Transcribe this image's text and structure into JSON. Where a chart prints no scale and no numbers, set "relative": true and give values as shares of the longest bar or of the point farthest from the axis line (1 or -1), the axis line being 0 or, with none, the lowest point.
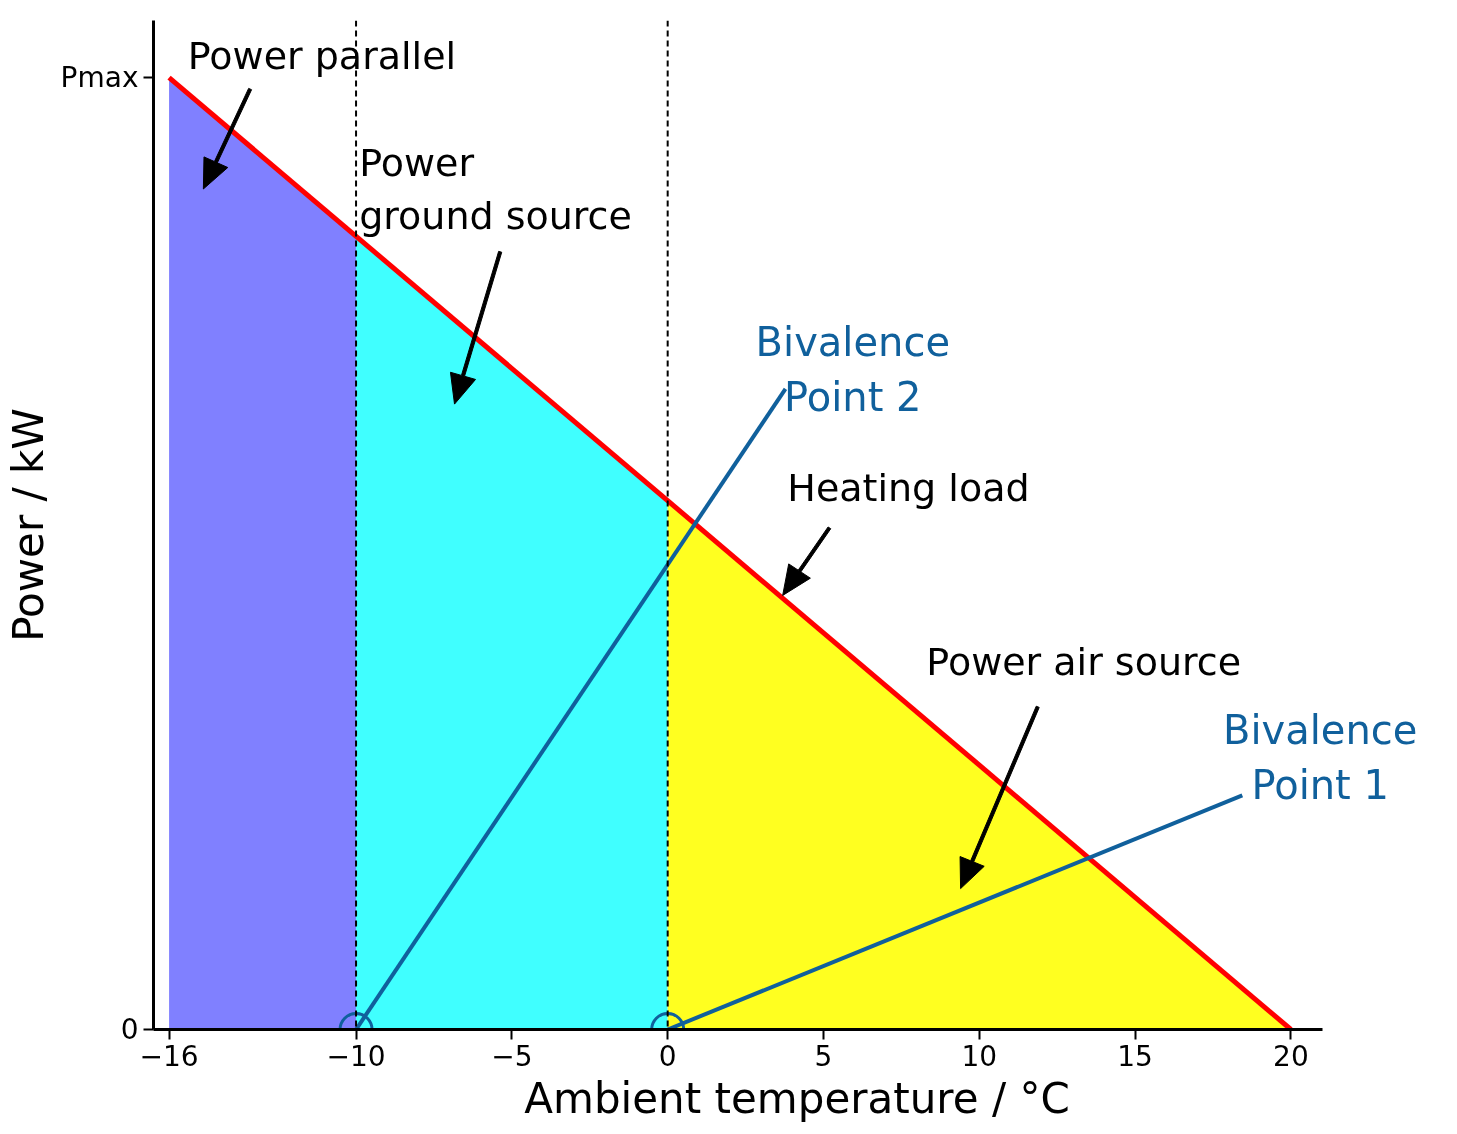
{
  "chart_data": {
    "type": "area",
    "xlabel": "Ambient temperature / °C",
    "ylabel": "Power / kW",
    "xlim": [
      -16.5,
      21
    ],
    "xticks": [
      -16,
      -10,
      -5,
      0,
      5,
      10,
      15,
      20
    ],
    "relative": true,
    "grid": false,
    "legend": false,
    "series": [
      {
        "color": "#8080ff",
        "x": [
          -16,
          -10
        ],
        "values": [
          1,
          0.833
        ]
      },
      {
        "color": "#40ffff",
        "x": [
          -10,
          0
        ],
        "values": [
          0.833,
          0.556
        ]
      },
      {
        "color": "#ffff20",
        "x": [
          0,
          20
        ],
        "values": [
          0.556,
          0
        ]
      },
      {
        "type": "line",
        "color": "#ff0000",
        "x": [
          -16,
          20
        ],
        "values": [
          1,
          0
        ]
      },
      {
        "type": "line",
        "name": "Bivalence\nPoint 2",
        "color": "#10609c",
        "x": [
          -10,
          3.78
        ],
        "values": [
          0,
          0.673
        ]
      },
      {
        "type": "line",
        "name": "Bivalence\nPoint 1",
        "color": "#10609c",
        "x": [
          0,
          18.44
        ],
        "values": [
          0,
          0.246
        ]
      },
      {
        "type": "scatter",
        "marker": "circle",
        "color": "#10609c",
        "x": [
          -10,
          0
        ],
        "values": [
          0,
          0
        ]
      }
    ],
    "ref_lines": [
      {
        "axis": "x",
        "value": -10,
        "color": "#000000",
        "line_style": "dashed"
      },
      {
        "axis": "x",
        "value": 0,
        "color": "#000000",
        "line_style": "dashed"
      }
    ],
    "annotations": [
      "Power parallel",
      "Power\nground source",
      "Heating load",
      "Power air source",
      "Pmax",
      "0"
    ]
  }
}
